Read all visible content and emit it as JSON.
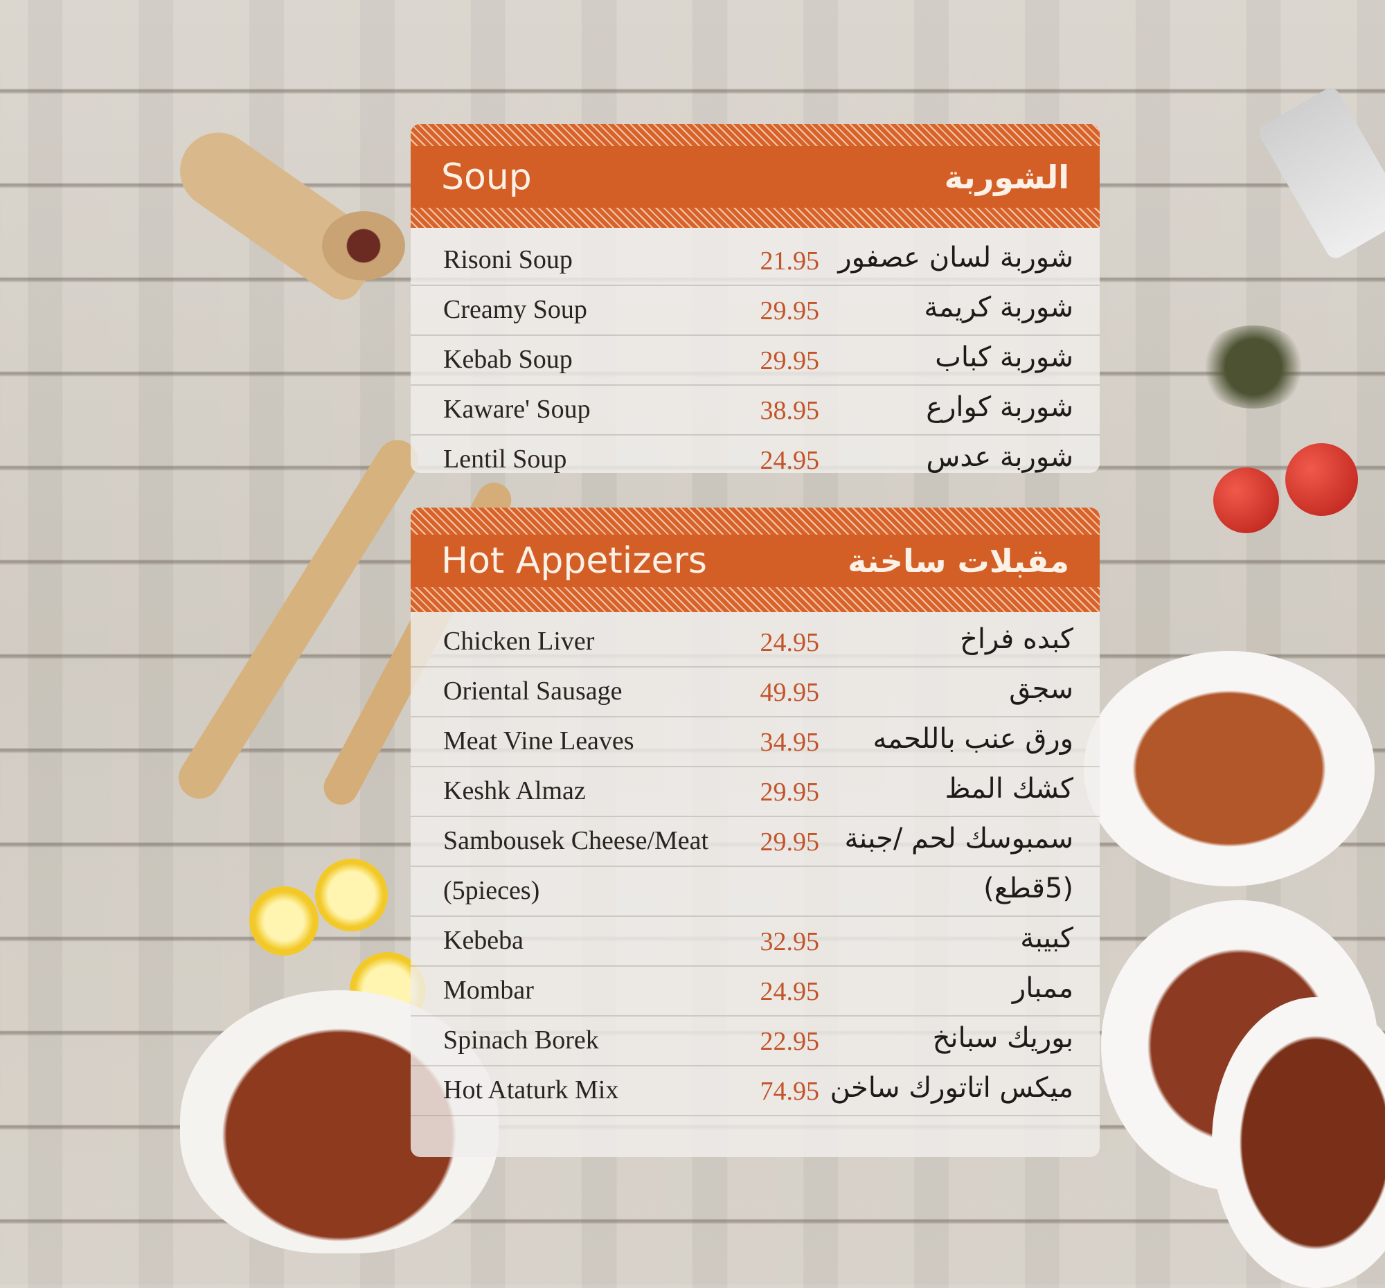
{
  "sections": [
    {
      "title_en": "Soup",
      "title_ar": "الشوربة",
      "items": [
        {
          "en": "Risoni Soup",
          "price": "21.95",
          "ar": "شوربة لسان عصفور"
        },
        {
          "en": "Creamy Soup",
          "price": "29.95",
          "ar": "شوربة كريمة"
        },
        {
          "en": "Kebab Soup",
          "price": "29.95",
          "ar": "شوربة كباب"
        },
        {
          "en": "Kaware' Soup",
          "price": "38.95",
          "ar": "شوربة كوارع"
        },
        {
          "en": "Lentil Soup",
          "price": "24.95",
          "ar": "شوربة عدس"
        }
      ]
    },
    {
      "title_en": "Hot Appetizers",
      "title_ar": "مقبلات ساخنة",
      "items": [
        {
          "en": "Chicken Liver",
          "price": "24.95",
          "ar": "كبده فراخ"
        },
        {
          "en": "Oriental Sausage",
          "price": "49.95",
          "ar": "سجق"
        },
        {
          "en": "Meat Vine Leaves",
          "price": "34.95",
          "ar": "ورق عنب باللحمه"
        },
        {
          "en": "Keshk Almaz",
          "price": "29.95",
          "ar": "كشك المظ"
        },
        {
          "en": "Sambousek Cheese/Meat",
          "price": "29.95",
          "ar": "سمبوسك لحم /جبنة"
        },
        {
          "en": "(5pieces)",
          "price": "",
          "ar": "(5قطع)"
        },
        {
          "en": "Kebeba",
          "price": "32.95",
          "ar": "كبيبة"
        },
        {
          "en": "Mombar",
          "price": "24.95",
          "ar": "ممبار"
        },
        {
          "en": "Spinach Borek",
          "price": "22.95",
          "ar": "بوريك سبانخ"
        },
        {
          "en": "Hot Ataturk Mix",
          "price": "74.95",
          "ar": "ميكس اتاتورك ساخن"
        }
      ]
    }
  ],
  "colors": {
    "accent": "#d35f27",
    "price": "#c2542a"
  }
}
